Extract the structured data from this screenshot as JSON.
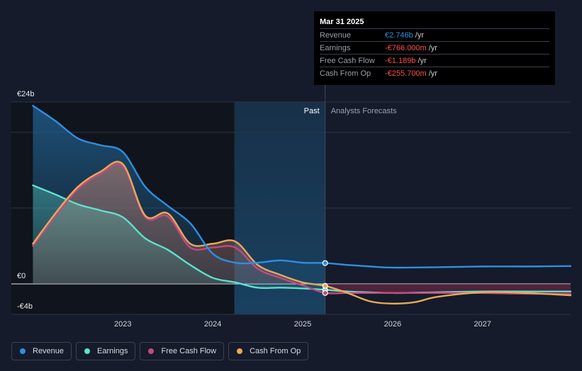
{
  "chart_data": {
    "type": "line",
    "y_tick_labels": [
      "€24b",
      "€0",
      "-€4b"
    ],
    "y_ticks": [
      24,
      0,
      -4
    ],
    "ylim": [
      -4,
      24
    ],
    "x_tick_labels": [
      "2023",
      "2024",
      "2025",
      "2026",
      "2027"
    ],
    "x_ticks": [
      2023,
      2024,
      2025,
      2026,
      2027
    ],
    "xlim": [
      2021.76,
      2027.98
    ],
    "past_label": "Past",
    "forecast_label": "Analysts Forecasts",
    "divider_x": 2025.25,
    "highlight_start": 2024.24,
    "series": [
      {
        "name": "Revenue",
        "color": "#2e8fe0",
        "x": [
          2022.0,
          2022.25,
          2022.5,
          2022.75,
          2023.0,
          2023.25,
          2023.5,
          2023.75,
          2024.0,
          2024.25,
          2024.5,
          2024.75,
          2025.0,
          2025.25,
          2025.5,
          2025.75,
          2026.0,
          2026.5,
          2027.0,
          2027.5,
          2027.98
        ],
        "y": [
          23.5,
          21.5,
          19.2,
          18.3,
          17.4,
          12.8,
          10.3,
          8.0,
          4.0,
          2.8,
          2.8,
          3.1,
          2.8,
          2.75,
          2.5,
          2.3,
          2.15,
          2.2,
          2.3,
          2.3,
          2.35
        ]
      },
      {
        "name": "Earnings",
        "color": "#5ee0cc",
        "x": [
          2022.0,
          2022.25,
          2022.5,
          2022.75,
          2023.0,
          2023.25,
          2023.5,
          2023.75,
          2024.0,
          2024.25,
          2024.5,
          2024.75,
          2025.0,
          2025.25,
          2025.5,
          2026.0,
          2026.5,
          2027.0,
          2027.5,
          2027.98
        ],
        "y": [
          13.0,
          11.8,
          10.5,
          9.7,
          8.8,
          6.0,
          4.5,
          2.5,
          0.8,
          0.2,
          -0.5,
          -0.5,
          -0.6,
          -0.77,
          -1.0,
          -1.2,
          -1.1,
          -1.0,
          -1.0,
          -1.0
        ]
      },
      {
        "name": "Free Cash Flow",
        "color": "#c24a7c",
        "x": [
          2022.0,
          2022.25,
          2022.5,
          2022.75,
          2023.0,
          2023.25,
          2023.5,
          2023.75,
          2024.0,
          2024.25,
          2024.5,
          2024.75,
          2025.0,
          2025.25,
          2025.5,
          2026.0,
          2026.5,
          2027.0,
          2027.5,
          2027.98
        ],
        "y": [
          5.0,
          9.0,
          12.5,
          14.5,
          15.5,
          8.8,
          8.9,
          4.8,
          4.8,
          4.8,
          2.0,
          0.8,
          -0.2,
          -1.19,
          -1.2,
          -1.2,
          -1.2,
          -1.2,
          -1.3,
          -1.3
        ]
      },
      {
        "name": "Cash From Op",
        "color": "#e8a95a",
        "x": [
          2022.0,
          2022.25,
          2022.5,
          2022.75,
          2023.0,
          2023.25,
          2023.5,
          2023.75,
          2024.0,
          2024.25,
          2024.5,
          2024.75,
          2025.0,
          2025.25,
          2025.5,
          2025.75,
          2026.0,
          2026.25,
          2026.5,
          2027.0,
          2027.5,
          2027.98
        ],
        "y": [
          5.3,
          9.3,
          12.8,
          14.8,
          15.8,
          9.0,
          9.3,
          5.3,
          5.3,
          5.6,
          2.5,
          1.2,
          0.2,
          -0.26,
          -1.2,
          -2.3,
          -2.6,
          -2.4,
          -1.7,
          -1.1,
          -1.2,
          -1.5
        ]
      }
    ]
  },
  "tooltip": {
    "date": "Mar 31 2025",
    "rows": [
      {
        "label": "Revenue",
        "value": "€2.746b",
        "unit": "/yr",
        "color": "#2e8fe0"
      },
      {
        "label": "Earnings",
        "value": "-€766.000m",
        "unit": "/yr",
        "color": "#ff4d4d"
      },
      {
        "label": "Free Cash Flow",
        "value": "-€1.189b",
        "unit": "/yr",
        "color": "#ff4d4d"
      },
      {
        "label": "Cash From Op",
        "value": "-€255.700m",
        "unit": "/yr",
        "color": "#ff4d4d"
      }
    ]
  },
  "legend": {
    "items": [
      {
        "label": "Revenue",
        "color": "#2e8fe0"
      },
      {
        "label": "Earnings",
        "color": "#5ee0cc"
      },
      {
        "label": "Free Cash Flow",
        "color": "#c24a7c"
      },
      {
        "label": "Cash From Op",
        "color": "#e8a95a"
      }
    ]
  }
}
